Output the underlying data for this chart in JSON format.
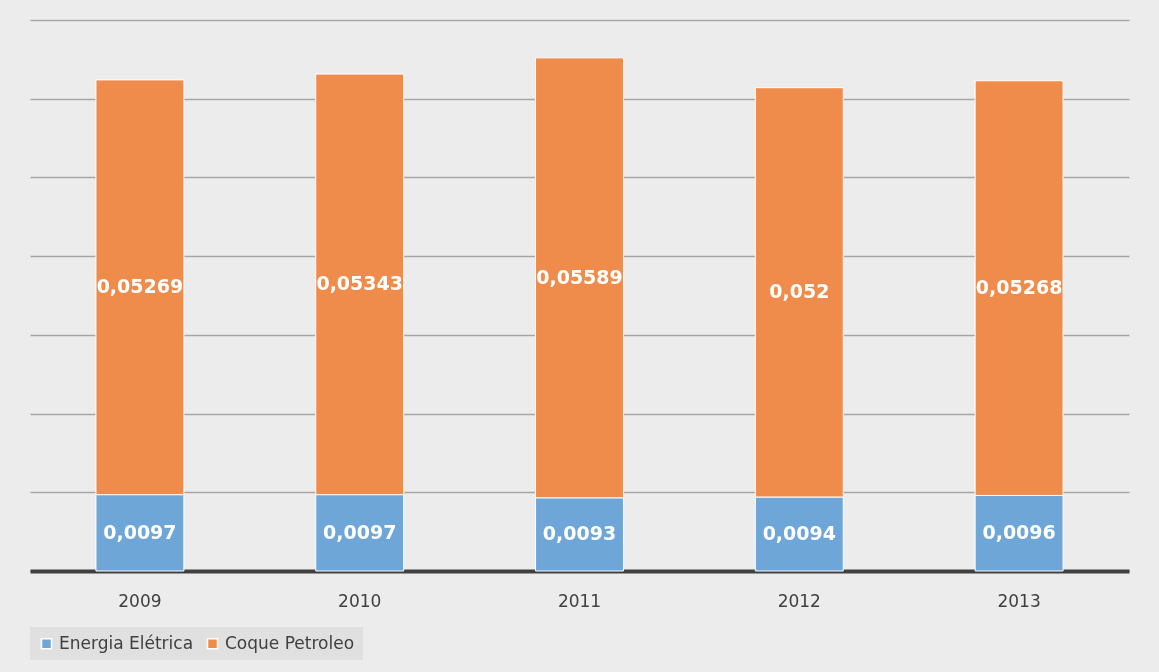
{
  "chart_data": {
    "type": "bar",
    "stacked": true,
    "categories": [
      "2009",
      "2010",
      "2011",
      "2012",
      "2013"
    ],
    "series": [
      {
        "name": "Energia Elétrica",
        "color": "#6fa6d8",
        "values": [
          0.0097,
          0.0097,
          0.0093,
          0.0094,
          0.0096
        ],
        "value_labels": [
          "0,0097",
          "0,0097",
          "0,0093",
          "0,0094",
          "0,0096"
        ]
      },
      {
        "name": "Coque Petroleo",
        "color": "#ef8b4b",
        "values": [
          0.05269,
          0.05343,
          0.05589,
          0.052,
          0.05268
        ],
        "value_labels": [
          "0,05269",
          "0,05343",
          "0,05589",
          "0,052",
          "0,05268"
        ]
      }
    ],
    "tick_labels": "x",
    "grid": "y",
    "legend": "bottom"
  }
}
